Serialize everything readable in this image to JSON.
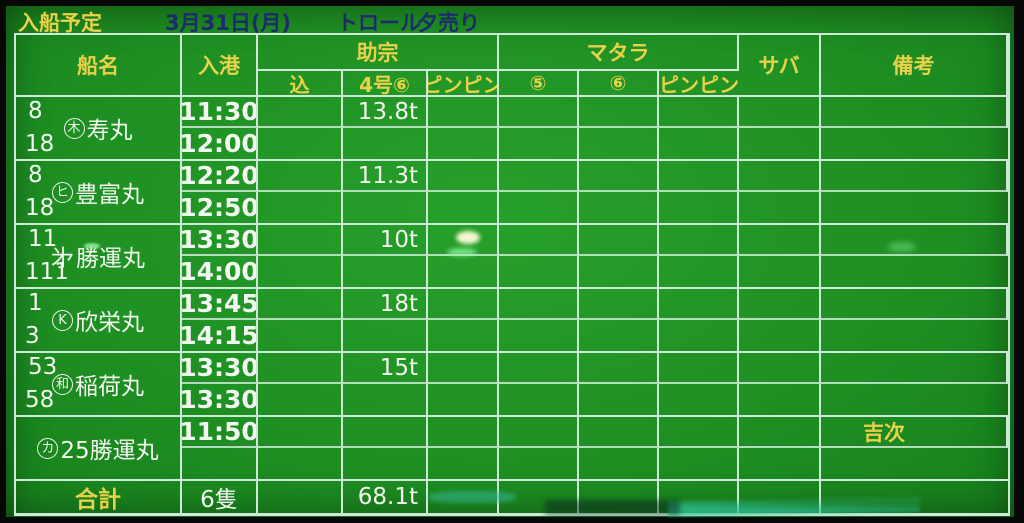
{
  "title_bar": {
    "label": "入船予定",
    "date": "3月31日(月)",
    "category": "トロール",
    "sale": "夕売り"
  },
  "table": {
    "headers": {
      "ship": "船名",
      "arrival": "入港",
      "sukeso": "助宗",
      "madara": "マタラ",
      "saba": "サバ",
      "remarks": "備考",
      "sukeso_sub_1": "込",
      "sukeso_sub_2": "4号⑥",
      "sukeso_sub_3": "ピンピン",
      "madara_sub_1": "⑤",
      "madara_sub_2": "⑥",
      "madara_sub_3": "ピンピン"
    },
    "ships": [
      {
        "num_top": "8",
        "num_bottom": "18",
        "mark": "木",
        "mark_circled": true,
        "name": "寿丸",
        "time_top": "11:30",
        "time_bottom": "12:00",
        "sukeso_4go": "13.8t",
        "remark": ""
      },
      {
        "num_top": "8",
        "num_bottom": "18",
        "mark": "ヒ",
        "mark_circled": true,
        "name": "豊富丸",
        "time_top": "12:20",
        "time_bottom": "12:50",
        "sukeso_4go": "11.3t",
        "remark": ""
      },
      {
        "num_top": "11",
        "num_bottom": "111",
        "mark": "㐧",
        "mark_circled": false,
        "name": "勝運丸",
        "time_top": "13:30",
        "time_bottom": "14:00",
        "sukeso_4go": "10t",
        "remark": ""
      },
      {
        "num_top": "1",
        "num_bottom": "3",
        "mark": "K",
        "mark_circled": true,
        "name": "欣栄丸",
        "time_top": "13:45",
        "time_bottom": "14:15",
        "sukeso_4go": "18t",
        "remark": ""
      },
      {
        "num_top": "53",
        "num_bottom": "58",
        "mark": "和",
        "mark_circled": true,
        "name": "稲荷丸",
        "time_top": "13:30",
        "time_bottom": "13:30",
        "sukeso_4go": "15t",
        "remark": ""
      },
      {
        "num_top": "",
        "num_bottom": "",
        "mark": "カ",
        "mark_circled": true,
        "name": "25勝運丸",
        "time_top": "11:50",
        "time_bottom": "",
        "sukeso_4go": "",
        "remark": "吉次"
      }
    ],
    "total": {
      "label": "合計",
      "count": "6隻",
      "sukeso_4go": "68.1t"
    }
  },
  "colors": {
    "board_green": "#1f9023",
    "grid_line": "#cfe9d8",
    "text_yellow": "#e8d24a",
    "text_white": "#f2f7ef",
    "text_navy": "#1c2a6e"
  }
}
